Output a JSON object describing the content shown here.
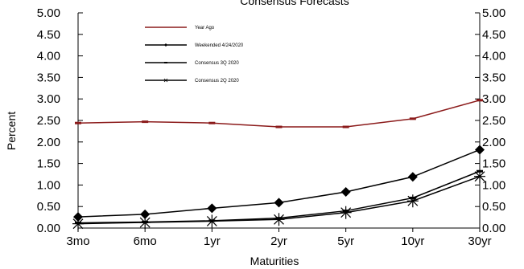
{
  "chart_data": {
    "type": "line",
    "title": "Consensus Forecasts",
    "xlabel": "Maturities",
    "ylabel": "Percent",
    "ylim": [
      0,
      5
    ],
    "yticks": [
      "0.00",
      "0.50",
      "1.00",
      "1.50",
      "2.00",
      "2.50",
      "3.00",
      "3.50",
      "4.00",
      "4.50",
      "5.00"
    ],
    "categories": [
      "3mo",
      "6mo",
      "1yr",
      "2yr",
      "5yr",
      "10yr",
      "30yr"
    ],
    "grid": false,
    "legend_position": "top-left",
    "series": [
      {
        "name": "Year Ago",
        "color": "#8b1a1a",
        "marker": "dash",
        "values": [
          2.44,
          2.47,
          2.44,
          2.35,
          2.35,
          2.54,
          2.97
        ]
      },
      {
        "name": "Weekended 4/24/2020",
        "color": "#000000",
        "marker": "diamond",
        "values": [
          0.26,
          0.32,
          0.46,
          0.59,
          0.84,
          1.19,
          1.82
        ]
      },
      {
        "name": "Consensus 3Q 2020",
        "color": "#000000",
        "marker": "dash",
        "values": [
          0.12,
          0.14,
          0.17,
          0.23,
          0.4,
          0.7,
          1.32
        ]
      },
      {
        "name": "Consensus 2Q 2020",
        "color": "#000000",
        "marker": "asterisk",
        "values": [
          0.1,
          0.13,
          0.16,
          0.2,
          0.36,
          0.63,
          1.2
        ]
      }
    ]
  }
}
